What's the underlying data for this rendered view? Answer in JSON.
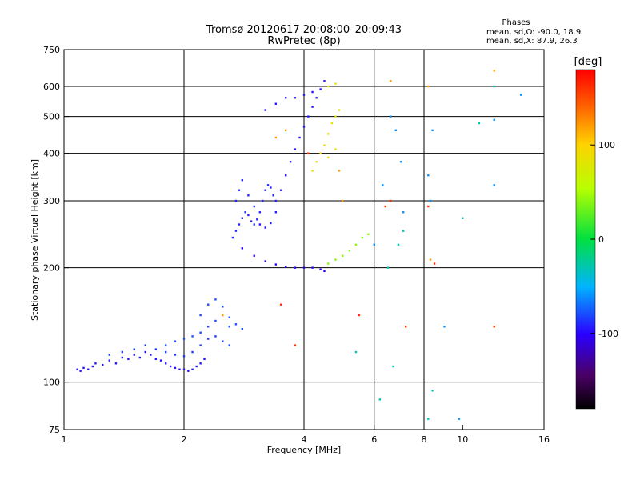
{
  "chart_data": {
    "type": "scatter",
    "title": "Tromsø 20120617 20:08:00–20:09:43",
    "subtitle": "RwPretec (8p)",
    "xlabel": "Frequency [MHz]",
    "ylabel": "Stationary phase Virtual Height [km]",
    "x_scale": "log",
    "y_scale": "log",
    "xlim": [
      1,
      16
    ],
    "ylim": [
      75,
      750
    ],
    "x_ticks": [
      1,
      2,
      4,
      6,
      8,
      10,
      16
    ],
    "y_ticks": [
      75,
      100,
      200,
      300,
      400,
      500,
      600,
      750
    ],
    "x_gridlines": [
      2,
      4,
      6,
      8
    ],
    "y_gridlines": [
      100,
      200,
      300,
      400,
      500,
      600
    ],
    "phase_info": {
      "title": "Phases",
      "line_o": "mean, sd,O:  -90.0, 18.9",
      "line_x": "mean, sd,X:  87.9, 26.3"
    },
    "colorbar": {
      "label": "[deg]",
      "range": [
        -180,
        180
      ],
      "ticks": [
        {
          "value": 100,
          "label": "100"
        },
        {
          "value": 0,
          "label": "0"
        },
        {
          "value": -100,
          "label": "-100"
        }
      ]
    },
    "traces": [
      {
        "name": "",
        "phase": -95,
        "points": [
          [
            1.08,
            108
          ],
          [
            1.1,
            107
          ],
          [
            1.12,
            109
          ],
          [
            1.15,
            108
          ],
          [
            1.18,
            110
          ],
          [
            1.2,
            112
          ],
          [
            1.25,
            111
          ],
          [
            1.3,
            114
          ],
          [
            1.35,
            112
          ],
          [
            1.4,
            116
          ],
          [
            1.45,
            115
          ],
          [
            1.5,
            118
          ],
          [
            1.55,
            116
          ],
          [
            1.6,
            120
          ],
          [
            1.65,
            118
          ],
          [
            1.7,
            115
          ],
          [
            1.75,
            114
          ],
          [
            1.8,
            112
          ],
          [
            1.85,
            110
          ],
          [
            1.9,
            109
          ],
          [
            1.95,
            108
          ],
          [
            2.0,
            108
          ],
          [
            2.05,
            107
          ],
          [
            2.1,
            108
          ],
          [
            2.15,
            110
          ],
          [
            2.2,
            112
          ],
          [
            2.25,
            115
          ]
        ]
      },
      {
        "name": "",
        "phase": -85,
        "points": [
          [
            1.3,
            118
          ],
          [
            1.4,
            120
          ],
          [
            1.5,
            122
          ],
          [
            1.6,
            125
          ],
          [
            1.7,
            122
          ],
          [
            1.8,
            120
          ],
          [
            1.9,
            118
          ],
          [
            2.0,
            117
          ],
          [
            2.1,
            120
          ],
          [
            2.2,
            125
          ],
          [
            2.3,
            130
          ],
          [
            2.4,
            132
          ],
          [
            2.5,
            128
          ],
          [
            2.6,
            125
          ]
        ]
      },
      {
        "name": "",
        "phase": -80,
        "points": [
          [
            1.8,
            125
          ],
          [
            1.9,
            128
          ],
          [
            2.0,
            130
          ],
          [
            2.1,
            132
          ],
          [
            2.2,
            135
          ],
          [
            2.3,
            140
          ],
          [
            2.4,
            145
          ],
          [
            2.5,
            150
          ],
          [
            2.6,
            148
          ],
          [
            2.7,
            142
          ],
          [
            2.8,
            138
          ],
          [
            2.2,
            150
          ],
          [
            2.3,
            160
          ],
          [
            2.4,
            165
          ],
          [
            2.5,
            158
          ],
          [
            2.6,
            140
          ]
        ]
      },
      {
        "name": "",
        "phase": -90,
        "points": [
          [
            2.65,
            240
          ],
          [
            2.7,
            250
          ],
          [
            2.75,
            260
          ],
          [
            2.8,
            270
          ],
          [
            2.85,
            280
          ],
          [
            2.9,
            275
          ],
          [
            2.95,
            265
          ],
          [
            3.0,
            260
          ],
          [
            3.05,
            268
          ],
          [
            3.1,
            280
          ],
          [
            3.15,
            300
          ],
          [
            3.2,
            320
          ],
          [
            3.25,
            330
          ],
          [
            3.3,
            325
          ],
          [
            3.35,
            310
          ],
          [
            3.4,
            300
          ],
          [
            2.7,
            300
          ],
          [
            2.75,
            320
          ],
          [
            2.8,
            340
          ],
          [
            2.9,
            310
          ],
          [
            3.0,
            290
          ]
        ]
      },
      {
        "name": "",
        "phase": -95,
        "points": [
          [
            3.1,
            260
          ],
          [
            3.2,
            255
          ],
          [
            3.3,
            262
          ],
          [
            3.4,
            280
          ],
          [
            3.5,
            320
          ],
          [
            3.6,
            350
          ],
          [
            3.7,
            380
          ],
          [
            3.8,
            410
          ],
          [
            3.9,
            440
          ],
          [
            4.0,
            470
          ],
          [
            4.1,
            500
          ],
          [
            4.2,
            530
          ],
          [
            4.3,
            560
          ],
          [
            4.4,
            590
          ],
          [
            4.5,
            620
          ],
          [
            3.2,
            520
          ],
          [
            3.4,
            540
          ],
          [
            3.6,
            560
          ],
          [
            3.8,
            560
          ],
          [
            4.0,
            570
          ],
          [
            4.2,
            580
          ]
        ]
      },
      {
        "name": "",
        "phase": -100,
        "points": [
          [
            2.8,
            225
          ],
          [
            3.0,
            215
          ],
          [
            3.2,
            208
          ],
          [
            3.4,
            204
          ],
          [
            3.6,
            201
          ],
          [
            3.8,
            200
          ],
          [
            4.0,
            200
          ],
          [
            4.2,
            200
          ],
          [
            4.4,
            198
          ],
          [
            4.5,
            196
          ]
        ]
      },
      {
        "name": "",
        "phase": 90,
        "points": [
          [
            4.3,
            380
          ],
          [
            4.4,
            400
          ],
          [
            4.5,
            420
          ],
          [
            4.6,
            450
          ],
          [
            4.7,
            480
          ],
          [
            4.8,
            500
          ],
          [
            4.9,
            520
          ],
          [
            4.2,
            360
          ],
          [
            4.6,
            390
          ],
          [
            4.8,
            410
          ],
          [
            4.6,
            600
          ],
          [
            4.8,
            610
          ]
        ]
      },
      {
        "name": "",
        "phase": 40,
        "points": [
          [
            4.6,
            205
          ],
          [
            4.8,
            210
          ],
          [
            5.0,
            215
          ],
          [
            5.2,
            222
          ],
          [
            5.4,
            230
          ],
          [
            5.6,
            240
          ],
          [
            5.8,
            245
          ]
        ]
      },
      {
        "name": "",
        "phase": 120,
        "points": [
          [
            2.5,
            150
          ],
          [
            3.4,
            440
          ],
          [
            3.6,
            460
          ],
          [
            4.9,
            360
          ],
          [
            5.0,
            300
          ],
          [
            6.6,
            620
          ],
          [
            8.2,
            600
          ],
          [
            8.3,
            210
          ],
          [
            12.0,
            660
          ]
        ]
      },
      {
        "name": "",
        "phase": -60,
        "points": [
          [
            6.0,
            230
          ],
          [
            6.3,
            330
          ],
          [
            6.6,
            500
          ],
          [
            6.8,
            460
          ],
          [
            7.0,
            380
          ],
          [
            7.1,
            280
          ],
          [
            8.2,
            350
          ],
          [
            8.3,
            300
          ],
          [
            8.4,
            460
          ],
          [
            9.0,
            140
          ],
          [
            12.0,
            490
          ],
          [
            12.0,
            330
          ],
          [
            14.0,
            570
          ],
          [
            9.8,
            80
          ]
        ]
      },
      {
        "name": "",
        "phase": -30,
        "points": [
          [
            5.4,
            120
          ],
          [
            6.2,
            90
          ],
          [
            6.5,
            200
          ],
          [
            6.7,
            110
          ],
          [
            6.9,
            230
          ],
          [
            7.1,
            250
          ],
          [
            8.2,
            80
          ],
          [
            8.4,
            95
          ],
          [
            10.0,
            270
          ],
          [
            11.0,
            480
          ],
          [
            12.0,
            600
          ]
        ]
      },
      {
        "name": "",
        "phase": 160,
        "points": [
          [
            3.5,
            160
          ],
          [
            3.8,
            125
          ],
          [
            4.1,
            400
          ],
          [
            5.5,
            150
          ],
          [
            6.4,
            290
          ],
          [
            6.6,
            300
          ],
          [
            7.2,
            140
          ],
          [
            8.2,
            290
          ],
          [
            8.5,
            205
          ],
          [
            12.0,
            140
          ]
        ]
      }
    ]
  }
}
